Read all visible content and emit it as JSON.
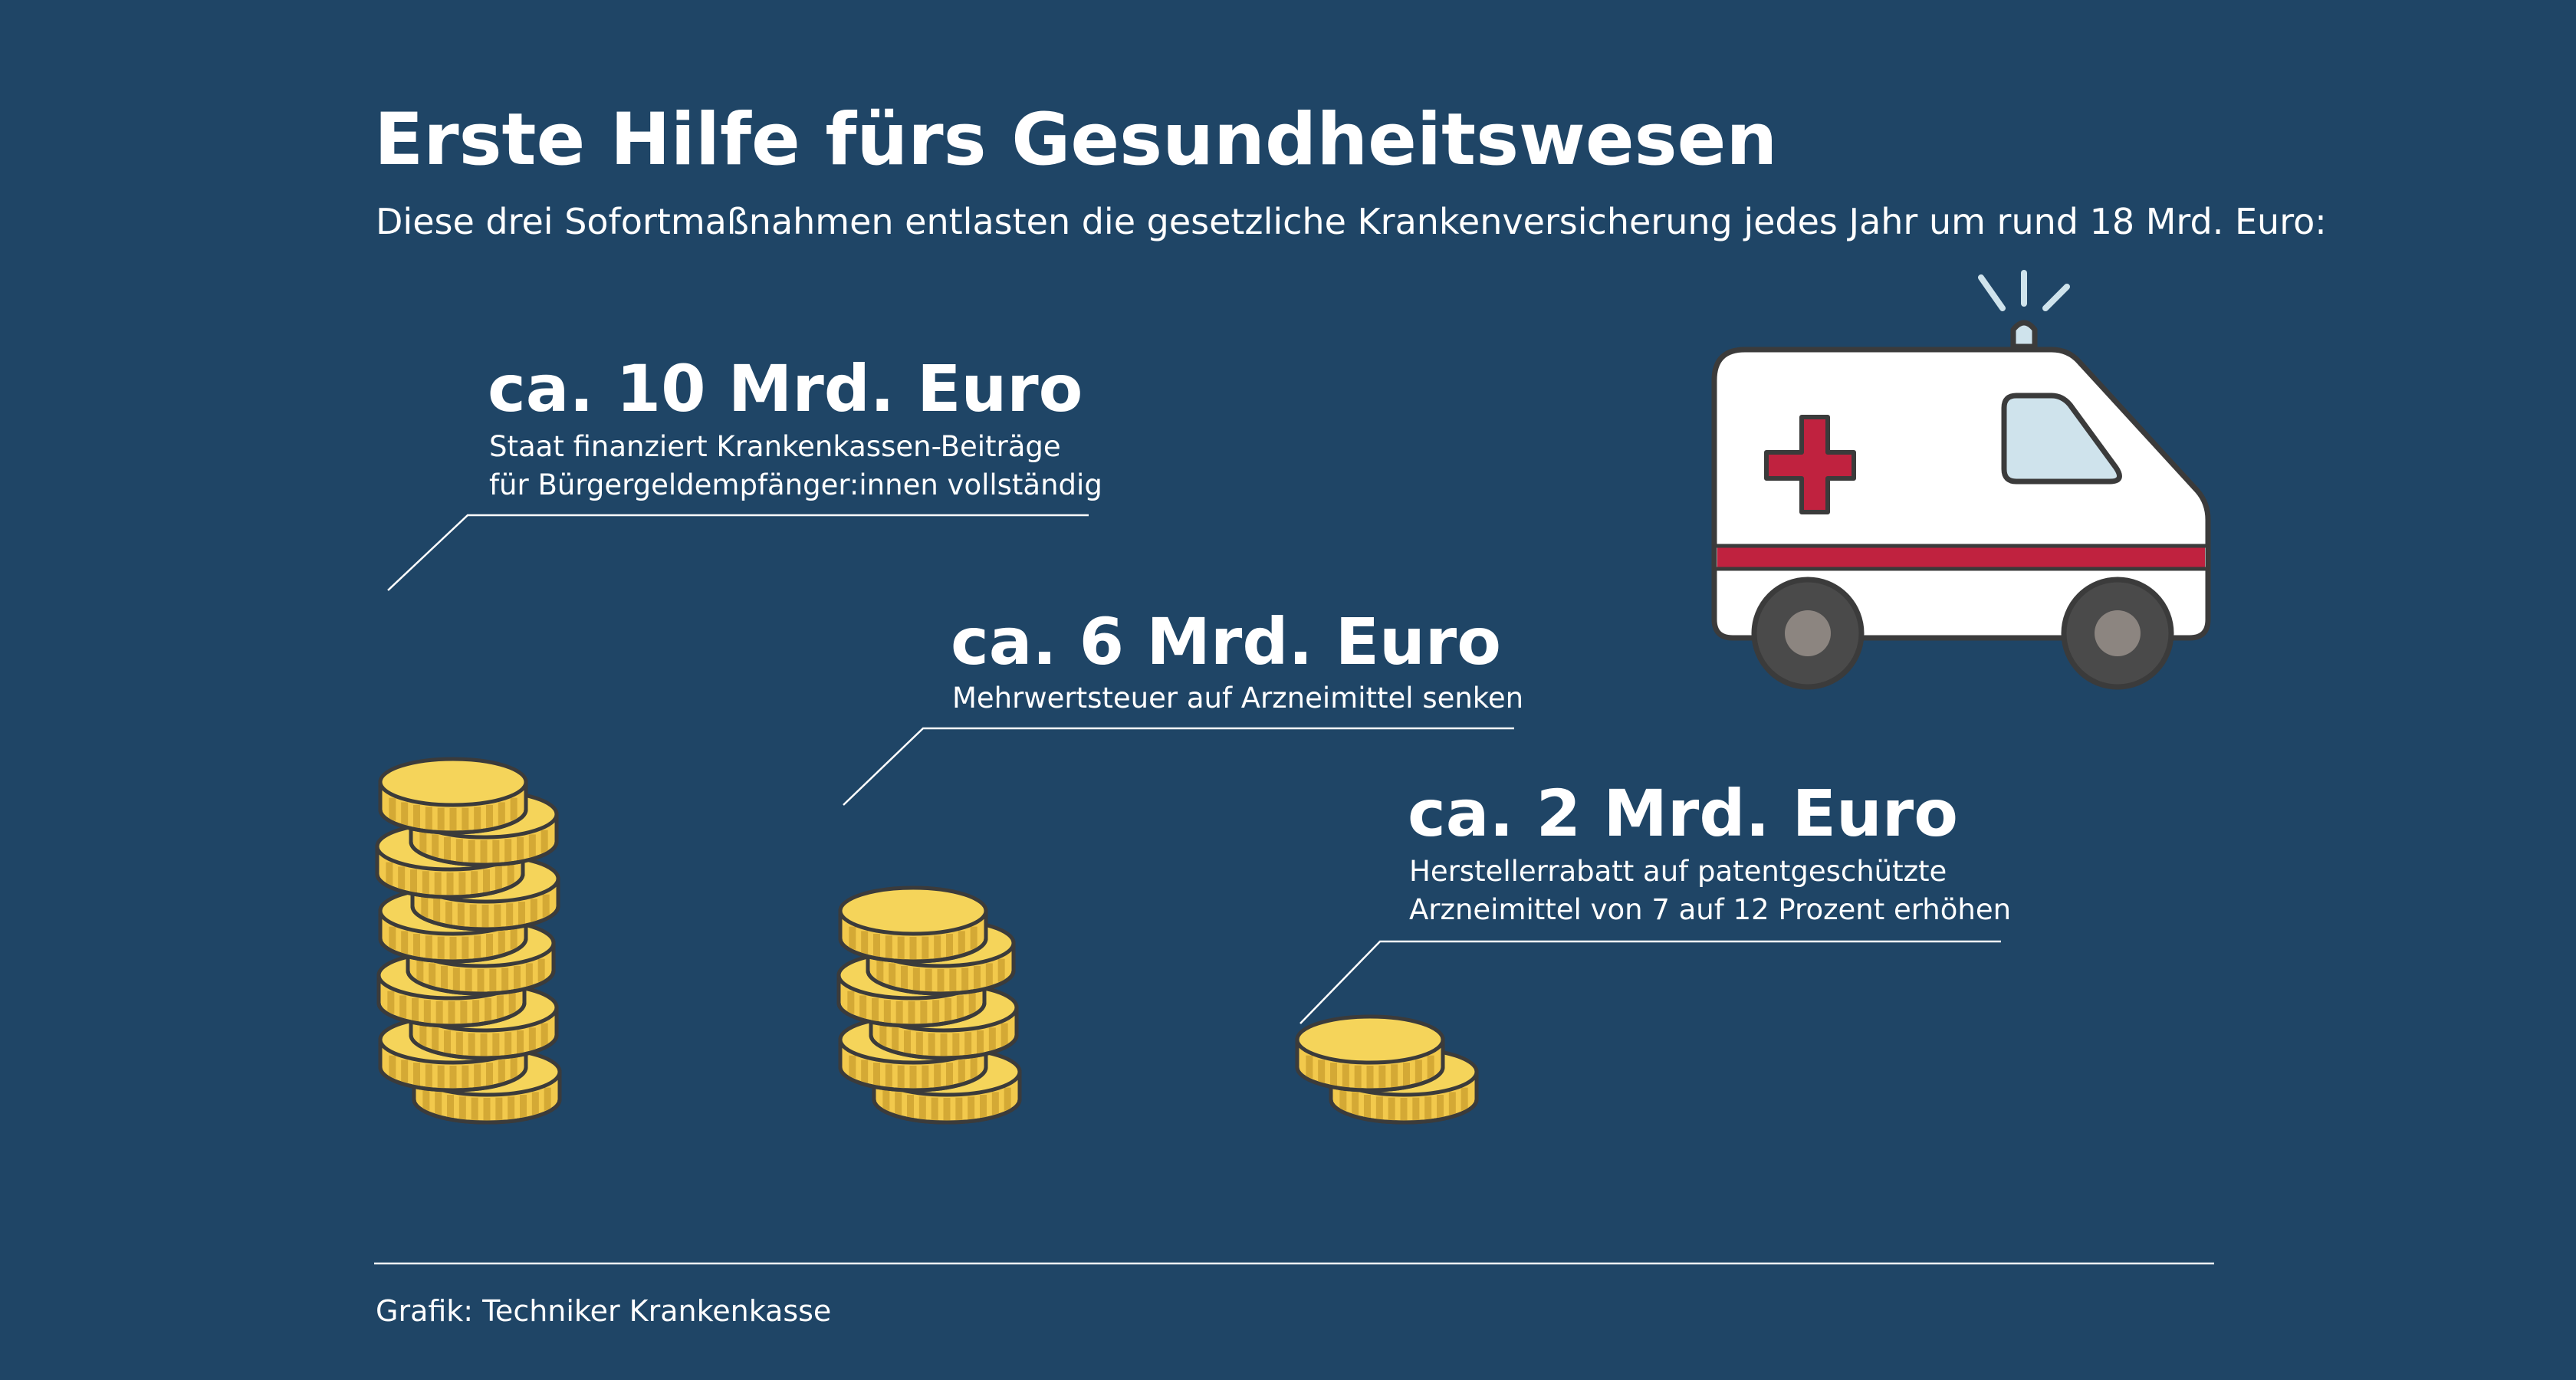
{
  "header": {
    "title": "Erste Hilfe fürs Gesundheitswesen",
    "subtitle": "Diese drei Sofortmaßnahmen entlasten die gesetzliche Krankenversicherung jedes Jahr um rund 18 Mrd. Euro:"
  },
  "items": [
    {
      "amount": "ca. 10 Mrd. Euro",
      "desc_line1": "Staat finanziert Krankenkassen-Beiträge",
      "desc_line2": "für Bürgergeldempfänger:innen vollständig",
      "coins": 10
    },
    {
      "amount": "ca. 6 Mrd. Euro",
      "desc_line1": "Mehrwertsteuer auf Arzneimittel senken",
      "desc_line2": "",
      "coins": 6
    },
    {
      "amount": "ca. 2 Mrd. Euro",
      "desc_line1": "Herstellerrabatt auf patentgeschützte",
      "desc_line2": "Arzneimittel von 7 auf 12 Prozent erhöhen",
      "coins": 2
    }
  ],
  "footer": {
    "source": "Grafik: Techniker Krankenkasse"
  },
  "colors": {
    "background": "#1f4566",
    "coin_fill": "#f2c94c",
    "coin_top": "#f5d45a",
    "coin_outline": "#3b3b3b",
    "ambulance_stripe": "#c0223f",
    "ambulance_window": "#cfe3ec"
  },
  "icons": [
    "ambulance-icon",
    "coin-stack-icon"
  ]
}
